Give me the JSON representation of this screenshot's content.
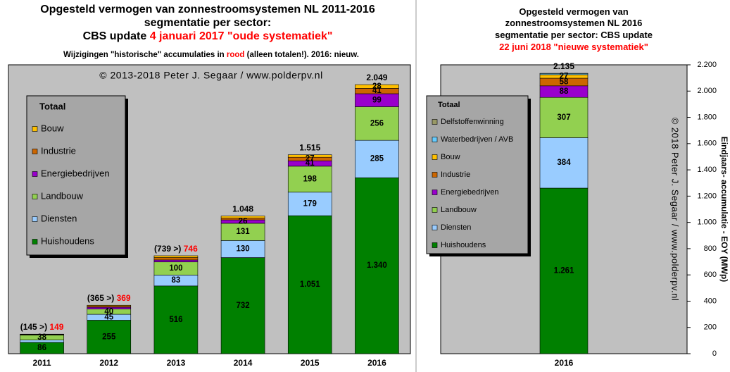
{
  "chart_data": [
    {
      "type": "stacked_bar",
      "title_lines": [
        [
          {
            "text": "Opgesteld vermogen van zonnestroomsystemen NL 2011-2016"
          }
        ],
        [
          {
            "text": "segmentatie per sector:"
          }
        ],
        [
          {
            "text": "CBS update "
          },
          {
            "text": "4 januari 2017 \"oude systematiek\"",
            "highlight": true
          }
        ]
      ],
      "subtitle": [
        {
          "text": "Wijzigingen \"historische\" accumulaties in "
        },
        {
          "text": "rood",
          "highlight": true
        },
        {
          "text": " (alleen totalen!). 2016: nieuw."
        }
      ],
      "highlight_color": "#ff0000",
      "copyright": "© 2013-2018 Peter J. Segaar / www.polderpv.nl",
      "legend_title": "Totaal",
      "categories": [
        "2011",
        "2012",
        "2013",
        "2014",
        "2015",
        "2016"
      ],
      "series": [
        {
          "name": "Huishoudens",
          "color": "#008000",
          "values": [
            86,
            255,
            516,
            732,
            1051,
            1340
          ],
          "value_labels": [
            "86",
            "255",
            "516",
            "732",
            "1.051",
            "1.340"
          ]
        },
        {
          "name": "Diensten",
          "color": "#99ccff",
          "values": [
            18,
            45,
            83,
            130,
            179,
            285
          ]
        },
        {
          "name": "Landbouw",
          "color": "#92d050",
          "values": [
            38,
            40,
            100,
            131,
            198,
            256
          ]
        },
        {
          "name": "Energiebedrijven",
          "color": "#9900cc",
          "values": [
            3,
            14,
            15,
            26,
            41,
            99
          ]
        },
        {
          "name": "Industrie",
          "color": "#cc6600",
          "values": [
            2,
            10,
            18,
            14,
            27,
            41
          ]
        },
        {
          "name": "Bouw",
          "color": "#ffc000",
          "values": [
            2,
            5,
            14,
            15,
            19,
            28
          ]
        }
      ],
      "totals": [
        {
          "value": 149,
          "previous": "(145 >)"
        },
        {
          "value": 369,
          "previous": "(365 >)"
        },
        {
          "value": 746,
          "previous": "(739 >)"
        },
        {
          "value": 1048,
          "label": "1.048"
        },
        {
          "value": 1515,
          "label": "1.515"
        },
        {
          "value": 2049,
          "label": "2.049"
        }
      ],
      "ylim": [
        0,
        2200
      ]
    },
    {
      "type": "stacked_bar",
      "title_lines": [
        [
          {
            "text": "Opgesteld vermogen van"
          }
        ],
        [
          {
            "text": "zonnestroomsystemen NL 2016"
          }
        ],
        [
          {
            "text": "segmentatie per sector: CBS update"
          }
        ],
        [
          {
            "text": "22 juni 2018 \"nieuwe systematiek\"",
            "highlight": true
          }
        ]
      ],
      "highlight_color": "#ff0000",
      "copyright": "© 2018 Peter J. Segaar / www.polderpv.nl",
      "y_axis_label": "Eindjaars- accumulatie - EOY (MWp)",
      "legend_title": "Totaal",
      "categories": [
        "2016"
      ],
      "series": [
        {
          "name": "Huishoudens",
          "color": "#008000",
          "values": [
            1261
          ],
          "value_labels": [
            "1.261"
          ]
        },
        {
          "name": "Diensten",
          "color": "#99ccff",
          "values": [
            384
          ]
        },
        {
          "name": "Landbouw",
          "color": "#92d050",
          "values": [
            307
          ]
        },
        {
          "name": "Energiebedrijven",
          "color": "#9900cc",
          "values": [
            88
          ]
        },
        {
          "name": "Industrie",
          "color": "#cc6600",
          "values": [
            58
          ]
        },
        {
          "name": "Bouw",
          "color": "#ffc000",
          "values": [
            27
          ]
        },
        {
          "name": "Waterbedrijven / AVB",
          "color": "#66ccff",
          "values": [
            9
          ]
        },
        {
          "name": "Delfstoffenwinning",
          "color": "#999966",
          "values": [
            1
          ]
        }
      ],
      "totals": [
        {
          "value": 2135,
          "label": "2.135"
        }
      ],
      "ylim": [
        0,
        2200
      ],
      "yticks": [
        0,
        200,
        400,
        600,
        800,
        {
          "value": 1000,
          "label": "1.000"
        },
        {
          "value": 1200,
          "label": "1.200"
        },
        {
          "value": 1400,
          "label": "1.400"
        },
        {
          "value": 1600,
          "label": "1.600"
        },
        {
          "value": 1800,
          "label": "1.800"
        },
        {
          "value": 2000,
          "label": "2.000"
        },
        {
          "value": 2200,
          "label": "2.200"
        }
      ]
    }
  ]
}
